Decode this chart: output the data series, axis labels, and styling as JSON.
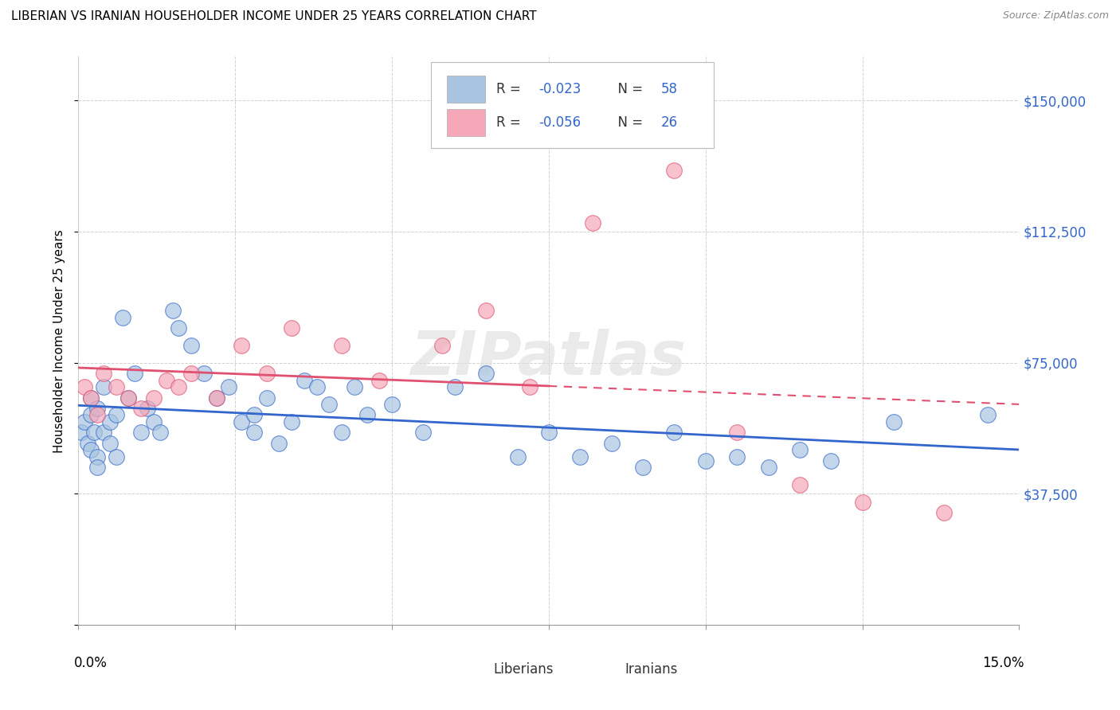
{
  "title": "LIBERIAN VS IRANIAN HOUSEHOLDER INCOME UNDER 25 YEARS CORRELATION CHART",
  "source": "Source: ZipAtlas.com",
  "ylabel": "Householder Income Under 25 years",
  "xlim": [
    0.0,
    0.15
  ],
  "ylim": [
    0,
    162500
  ],
  "yticks": [
    0,
    37500,
    75000,
    112500,
    150000
  ],
  "ytick_labels": [
    "",
    "$37,500",
    "$75,000",
    "$112,500",
    "$150,000"
  ],
  "legend_label_blue": "Liberians",
  "legend_label_pink": "Iranians",
  "blue_fill": "#A8C4E0",
  "pink_fill": "#F4A8B8",
  "blue_line": "#3366CC",
  "pink_line": "#E05070",
  "watermark": "ZIPatlas",
  "liberian_x": [
    0.0005,
    0.001,
    0.0015,
    0.002,
    0.002,
    0.002,
    0.0025,
    0.003,
    0.003,
    0.003,
    0.004,
    0.004,
    0.005,
    0.005,
    0.006,
    0.006,
    0.007,
    0.008,
    0.009,
    0.01,
    0.011,
    0.012,
    0.013,
    0.015,
    0.016,
    0.018,
    0.02,
    0.022,
    0.024,
    0.026,
    0.028,
    0.028,
    0.03,
    0.032,
    0.034,
    0.036,
    0.038,
    0.04,
    0.042,
    0.044,
    0.046,
    0.05,
    0.055,
    0.06,
    0.065,
    0.07,
    0.075,
    0.08,
    0.085,
    0.09,
    0.095,
    0.1,
    0.105,
    0.11,
    0.115,
    0.12,
    0.13,
    0.145
  ],
  "liberian_y": [
    55000,
    58000,
    52000,
    65000,
    60000,
    50000,
    55000,
    62000,
    48000,
    45000,
    68000,
    55000,
    58000,
    52000,
    60000,
    48000,
    88000,
    65000,
    72000,
    55000,
    62000,
    58000,
    55000,
    90000,
    85000,
    80000,
    72000,
    65000,
    68000,
    58000,
    60000,
    55000,
    65000,
    52000,
    58000,
    70000,
    68000,
    63000,
    55000,
    68000,
    60000,
    63000,
    55000,
    68000,
    72000,
    48000,
    55000,
    48000,
    52000,
    45000,
    55000,
    47000,
    48000,
    45000,
    50000,
    47000,
    58000,
    60000
  ],
  "iranian_x": [
    0.001,
    0.002,
    0.003,
    0.004,
    0.006,
    0.008,
    0.01,
    0.012,
    0.014,
    0.016,
    0.018,
    0.022,
    0.026,
    0.03,
    0.034,
    0.042,
    0.048,
    0.058,
    0.065,
    0.072,
    0.082,
    0.095,
    0.105,
    0.115,
    0.125,
    0.138
  ],
  "iranian_y": [
    68000,
    65000,
    60000,
    72000,
    68000,
    65000,
    62000,
    65000,
    70000,
    68000,
    72000,
    65000,
    80000,
    72000,
    85000,
    80000,
    70000,
    80000,
    90000,
    68000,
    115000,
    130000,
    55000,
    40000,
    35000,
    32000
  ]
}
